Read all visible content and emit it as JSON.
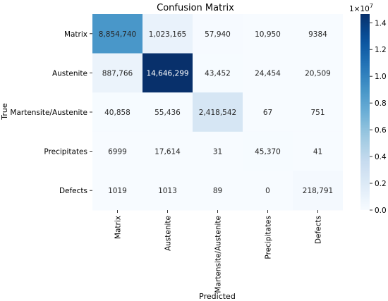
{
  "chart_data": {
    "type": "heatmap",
    "title": "Confusion Matrix",
    "xlabel": "Predicted",
    "ylabel": "True",
    "x_categories": [
      "Matrix",
      "Austenite",
      "Martensite/Austenite",
      "Precipitates",
      "Defects"
    ],
    "y_categories": [
      "Matrix",
      "Austenite",
      "Martensite/Austenite",
      "Precipitates",
      "Defects"
    ],
    "values": [
      [
        8854740,
        1023165,
        57940,
        10950,
        9384
      ],
      [
        887766,
        14646299,
        43452,
        24454,
        20509
      ],
      [
        40858,
        55436,
        2418542,
        67,
        751
      ],
      [
        6999,
        17614,
        31,
        45370,
        41
      ],
      [
        1019,
        1013,
        89,
        0,
        218791
      ]
    ],
    "cell_labels": [
      [
        "8,854,740",
        "1,023,165",
        "57,940",
        "10,950",
        "9384"
      ],
      [
        "887,766",
        "14,646,299",
        "43,452",
        "24,454",
        "20,509"
      ],
      [
        "40,858",
        "55,436",
        "2,418,542",
        "67",
        "751"
      ],
      [
        "6999",
        "17,614",
        "31",
        "45,370",
        "41"
      ],
      [
        "1019",
        "1013",
        "89",
        "0",
        "218,791"
      ]
    ],
    "colormap": "Blues",
    "colorbar": {
      "ticks": [
        0.0,
        0.2,
        0.4,
        0.6,
        0.8,
        1.0,
        1.2,
        1.4
      ],
      "tick_labels": [
        "0.0",
        "0.2",
        "0.4",
        "0.6",
        "0.8",
        "1.0",
        "1.2",
        "1.4"
      ],
      "multiplier": "1e7",
      "range": [
        0,
        14646299
      ]
    }
  }
}
